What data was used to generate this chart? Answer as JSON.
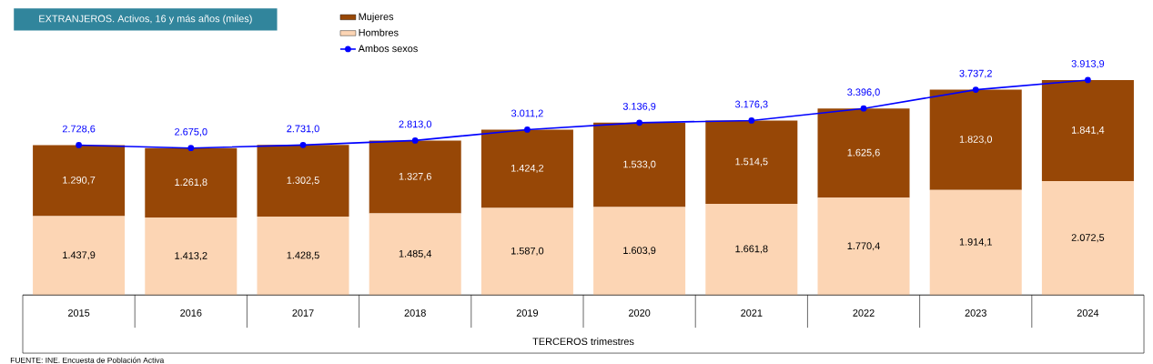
{
  "chart_data": {
    "type": "bar",
    "stacked": true,
    "title": "EXTRANJEROS. Activos, 16 y más años (miles)",
    "xlabel": "TERCEROS trimestres",
    "annotations": [
      "FUENTE: INE. Encuesta de Población Activa"
    ],
    "legend": "top",
    "marker": "circle",
    "categories": [
      "2015",
      "2016",
      "2017",
      "2018",
      "2019",
      "2020",
      "2021",
      "2022",
      "2023",
      "2024"
    ],
    "series": [
      {
        "name": "Hombres",
        "color": "#fcd5b4",
        "values": [
          1437.9,
          1413.2,
          1428.5,
          1485.4,
          1587.0,
          1603.9,
          1661.8,
          1770.4,
          1914.1,
          2072.5
        ],
        "value_labels": [
          "1.437,9",
          "1.413,2",
          "1.428,5",
          "1.485,4",
          "1.587,0",
          "1.603,9",
          "1.661,8",
          "1.770,4",
          "1.914,1",
          "2.072,5"
        ]
      },
      {
        "name": "Mujeres",
        "color": "#974706",
        "values": [
          1290.7,
          1261.8,
          1302.5,
          1327.6,
          1424.2,
          1533.0,
          1514.5,
          1625.6,
          1823.0,
          1841.4
        ],
        "value_labels": [
          "1.290,7",
          "1.261,8",
          "1.302,5",
          "1.327,6",
          "1.424,2",
          "1.533,0",
          "1.514,5",
          "1.625,6",
          "1.823,0",
          "1.841,4"
        ]
      },
      {
        "name": "Ambos sexos",
        "type": "line",
        "color": "#0000ff",
        "values": [
          2728.6,
          2675.0,
          2731.0,
          2813.0,
          3011.2,
          3136.9,
          3176.3,
          3396.0,
          3737.2,
          3913.9
        ],
        "value_labels": [
          "2.728,6",
          "2.675,0",
          "2.731,0",
          "2.813,0",
          "3.011,2",
          "3.136,9",
          "3.176,3",
          "3.396,0",
          "3.737,2",
          "3.913,9"
        ]
      }
    ]
  }
}
